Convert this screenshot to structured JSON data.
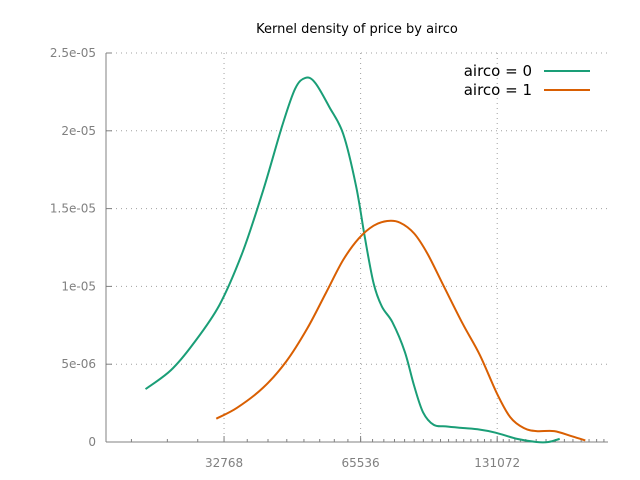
{
  "chart_data": {
    "type": "line",
    "title": "Kernel density of price by airco",
    "xlabel": "",
    "ylabel": "",
    "x_scale": "log2",
    "xlim": [
      18000,
      230000
    ],
    "ylim": [
      0,
      2.5e-05
    ],
    "grid": true,
    "legend_position": "top-right",
    "x_ticks": [
      32768,
      65536,
      131072
    ],
    "x_tick_labels": [
      "32768",
      "65536",
      "131072"
    ],
    "y_ticks": [
      0,
      5e-06,
      1e-05,
      1.5e-05,
      2e-05,
      2.5e-05
    ],
    "y_tick_labels": [
      "0",
      "5e-06",
      "1e-05",
      "1.5e-05",
      "2e-05",
      "2.5e-05"
    ],
    "colors": {
      "airco0": "#1a9e77",
      "airco1": "#d95f02",
      "axis": "#808080"
    },
    "series": [
      {
        "name": "airco = 0",
        "color": "#1a9e77",
        "points": [
          [
            22000,
            3.4e-06
          ],
          [
            25000,
            4.6e-06
          ],
          [
            28000,
            6.3e-06
          ],
          [
            32000,
            8.8e-06
          ],
          [
            36000,
            1.22e-05
          ],
          [
            40000,
            1.62e-05
          ],
          [
            44000,
            2.03e-05
          ],
          [
            47000,
            2.27e-05
          ],
          [
            49500,
            2.34e-05
          ],
          [
            52000,
            2.31e-05
          ],
          [
            56000,
            2.15e-05
          ],
          [
            60000,
            1.98e-05
          ],
          [
            64000,
            1.65e-05
          ],
          [
            67000,
            1.31e-05
          ],
          [
            70000,
            1.02e-05
          ],
          [
            73000,
            8.7e-06
          ],
          [
            77000,
            7.7e-06
          ],
          [
            82000,
            5.8e-06
          ],
          [
            86000,
            3.6e-06
          ],
          [
            90000,
            1.9e-06
          ],
          [
            95000,
            1.1e-06
          ],
          [
            101000,
            1e-06
          ],
          [
            110000,
            9e-07
          ],
          [
            120000,
            8e-07
          ],
          [
            130000,
            6e-07
          ],
          [
            145000,
            2e-07
          ],
          [
            160000,
            0.0
          ],
          [
            170000,
            0.0
          ],
          [
            180000,
            2e-07
          ]
        ]
      },
      {
        "name": "airco = 1",
        "color": "#d95f02",
        "points": [
          [
            31500,
            1.5e-06
          ],
          [
            35000,
            2.2e-06
          ],
          [
            40000,
            3.5e-06
          ],
          [
            45000,
            5.2e-06
          ],
          [
            50000,
            7.3e-06
          ],
          [
            55000,
            9.6e-06
          ],
          [
            60000,
            1.17e-05
          ],
          [
            65000,
            1.31e-05
          ],
          [
            70000,
            1.39e-05
          ],
          [
            75000,
            1.42e-05
          ],
          [
            80000,
            1.41e-05
          ],
          [
            86000,
            1.34e-05
          ],
          [
            92000,
            1.21e-05
          ],
          [
            100000,
            1e-05
          ],
          [
            110000,
            7.6e-06
          ],
          [
            120000,
            5.6e-06
          ],
          [
            131000,
            3.1e-06
          ],
          [
            140000,
            1.6e-06
          ],
          [
            150000,
            9e-07
          ],
          [
            160000,
            7e-07
          ],
          [
            175000,
            7e-07
          ],
          [
            190000,
            4e-07
          ],
          [
            205000,
            1e-07
          ]
        ]
      }
    ]
  }
}
